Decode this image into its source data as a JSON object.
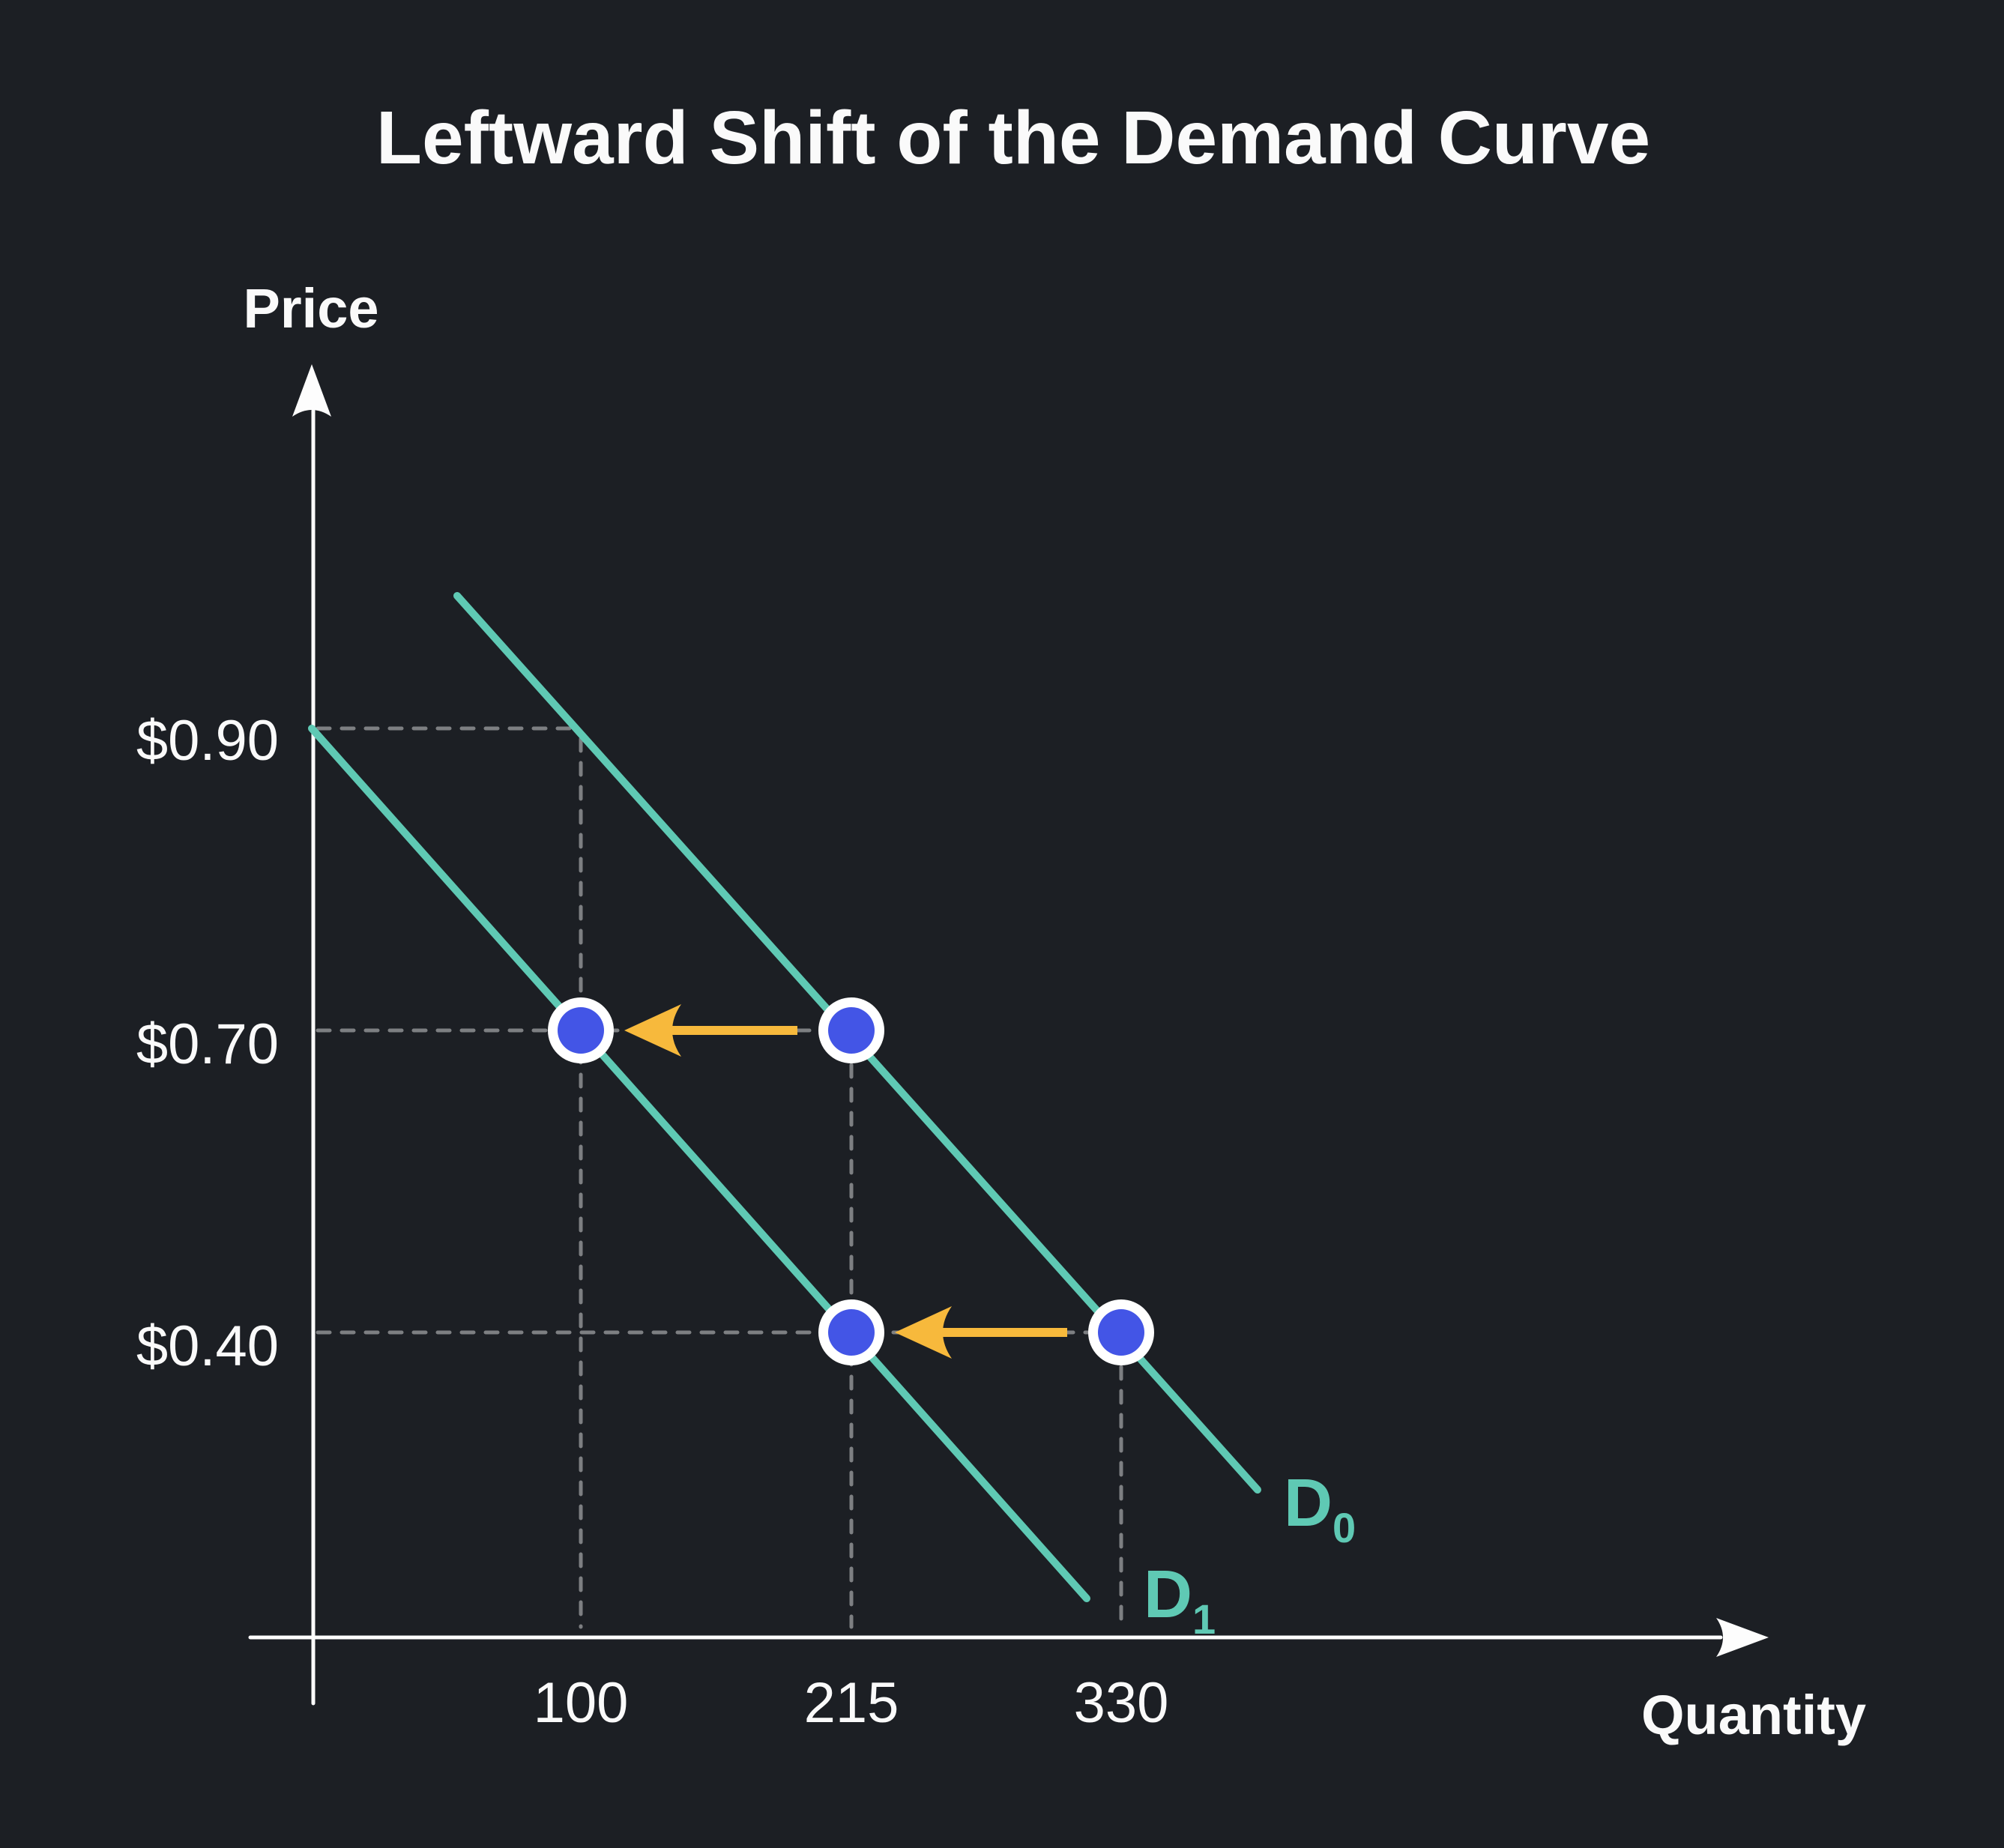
{
  "title": "Leftward Shift of the Demand Curve",
  "axis_labels": {
    "y": "Price",
    "x": "Quantity"
  },
  "colors": {
    "background": "#1c1f24",
    "text": "#fafafa",
    "axis": "#fdfdfd",
    "gridline": "#7d7f82",
    "curve": "#5fc9b4",
    "point-fill": "#4355e6",
    "point-ring": "#ffffff",
    "arrow": "#f7b93c"
  },
  "chart_data": {
    "type": "line",
    "title": "Leftward Shift of the Demand Curve",
    "xlabel": "Quantity",
    "ylabel": "Price",
    "x_ticks": [
      "100",
      "215",
      "330"
    ],
    "y_ticks": [
      "$0.90",
      "$0.70",
      "$0.40"
    ],
    "grid": "dashed guide lines from axes to points",
    "legend_position": "labels at lower end of each curve",
    "series": [
      {
        "name": "D",
        "sub": "0",
        "label": "D0",
        "points": [
          {
            "quantity": 215,
            "price": "$0.70"
          },
          {
            "quantity": 330,
            "price": "$0.40"
          }
        ]
      },
      {
        "name": "D",
        "sub": "1",
        "label": "D1",
        "points": [
          {
            "quantity": 100,
            "price": "$0.70"
          },
          {
            "quantity": 215,
            "price": "$0.40"
          }
        ]
      }
    ],
    "shift_arrows": [
      {
        "price": "$0.70",
        "from_quantity": 215,
        "to_quantity": 100,
        "direction": "left"
      },
      {
        "price": "$0.40",
        "from_quantity": 330,
        "to_quantity": 215,
        "direction": "left"
      }
    ],
    "guide_pairs": [
      {
        "price": "$0.90",
        "quantity": 100
      },
      {
        "price": "$0.70",
        "quantity": 215
      },
      {
        "price": "$0.40",
        "quantity": 330
      }
    ]
  }
}
